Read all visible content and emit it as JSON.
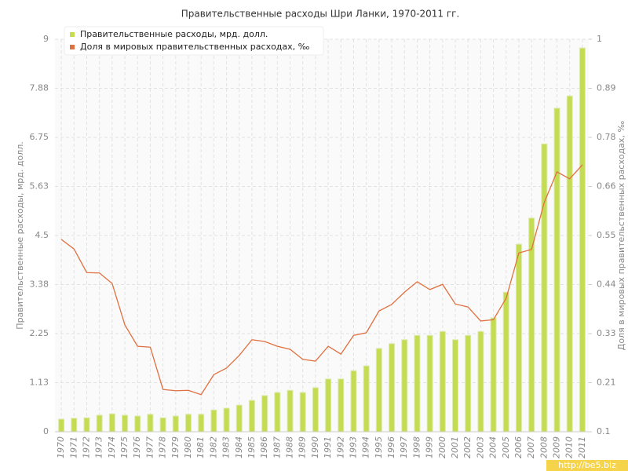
{
  "chart_data": {
    "type": "bar-line",
    "title": "Правительственные расходы Шри Ланки, 1970-2011 гг.",
    "y_label": "Правительственные расходы, мрд. долл.",
    "y2_label": "Доля в мировых правительственных расходах, ‰",
    "watermark": "http://be5.biz",
    "categories": [
      "1970",
      "1971",
      "1972",
      "1973",
      "1974",
      "1975",
      "1976",
      "1977",
      "1978",
      "1979",
      "1980",
      "1981",
      "1982",
      "1983",
      "1984",
      "1985",
      "1986",
      "1987",
      "1988",
      "1989",
      "1990",
      "1991",
      "1992",
      "1993",
      "1994",
      "1995",
      "1996",
      "1997",
      "1998",
      "1999",
      "2000",
      "2001",
      "2002",
      "2003",
      "2004",
      "2005",
      "2006",
      "2007",
      "2008",
      "2009",
      "2010",
      "2011"
    ],
    "series": [
      {
        "name": "Правительственные расходы, мрд. долл.",
        "color": "#c5dc52",
        "type": "bar",
        "values": [
          0.29,
          0.31,
          0.32,
          0.38,
          0.41,
          0.38,
          0.36,
          0.4,
          0.32,
          0.36,
          0.4,
          0.4,
          0.5,
          0.54,
          0.61,
          0.72,
          0.83,
          0.9,
          0.95,
          0.9,
          1.01,
          1.21,
          1.21,
          1.4,
          1.51,
          1.91,
          2.02,
          2.11,
          2.21,
          2.21,
          2.3,
          2.11,
          2.21,
          2.3,
          2.61,
          3.2,
          4.3,
          4.9,
          6.6,
          7.42,
          7.7,
          8.8
        ]
      },
      {
        "name": "Доля в мировых правительственных расходах, ‰",
        "color": "#e0703f",
        "type": "line",
        "axis": "y2",
        "values": [
          0.541,
          0.519,
          0.465,
          0.464,
          0.44,
          0.345,
          0.296,
          0.294,
          0.197,
          0.194,
          0.195,
          0.185,
          0.231,
          0.246,
          0.275,
          0.311,
          0.307,
          0.296,
          0.289,
          0.266,
          0.262,
          0.296,
          0.278,
          0.321,
          0.327,
          0.377,
          0.392,
          0.42,
          0.444,
          0.426,
          0.438,
          0.393,
          0.386,
          0.354,
          0.357,
          0.406,
          0.51,
          0.518,
          0.626,
          0.696,
          0.68,
          0.712
        ]
      }
    ],
    "ylim": [
      0,
      9
    ],
    "yticks": [
      0,
      {
        "value": 1.125,
        "label": "1.13"
      },
      2.25,
      {
        "value": 3.375,
        "label": "3.38"
      },
      4.5,
      {
        "value": 5.625,
        "label": "5.63"
      },
      6.75,
      {
        "value": 7.875,
        "label": "7.88"
      },
      9
    ],
    "y2lim": [
      0.1,
      1
    ],
    "y2ticks": [
      0.1,
      {
        "value": 0.2125,
        "label": "0.21"
      },
      {
        "value": 0.325,
        "label": "0.33"
      },
      {
        "value": 0.4375,
        "label": "0.44"
      },
      0.55,
      {
        "value": 0.6625,
        "label": "0.66"
      },
      {
        "value": 0.775,
        "label": "0.78"
      },
      {
        "value": 0.8875,
        "label": "0.89"
      },
      1
    ],
    "grid": true
  }
}
